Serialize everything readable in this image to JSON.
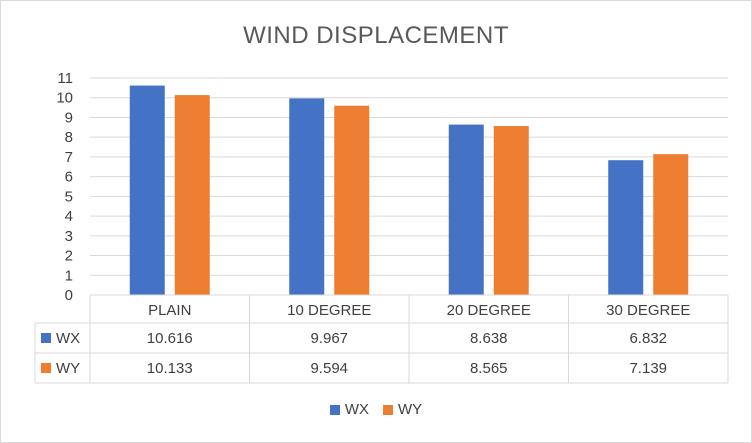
{
  "chart_data": {
    "type": "bar",
    "title": "WIND DISPLACEMENT",
    "categories": [
      "PLAIN",
      "10 DEGREE",
      "20 DEGREE",
      "30 DEGREE"
    ],
    "series": [
      {
        "name": "WX",
        "values": [
          10.616,
          9.967,
          8.638,
          6.832
        ],
        "labels": [
          "10.616",
          "9.967",
          "8.638",
          "6.832"
        ],
        "color": "#4472c4"
      },
      {
        "name": "WY",
        "values": [
          10.133,
          9.594,
          8.565,
          7.139
        ],
        "labels": [
          "10.133",
          "9.594",
          "8.565",
          "7.139"
        ],
        "color": "#ed7d31"
      }
    ],
    "ylim": [
      0,
      11
    ],
    "yticks": [
      "0",
      "1",
      "2",
      "3",
      "4",
      "5",
      "6",
      "7",
      "8",
      "9",
      "10",
      "11"
    ],
    "grid": true,
    "legend": "bottom",
    "data_table": true
  }
}
